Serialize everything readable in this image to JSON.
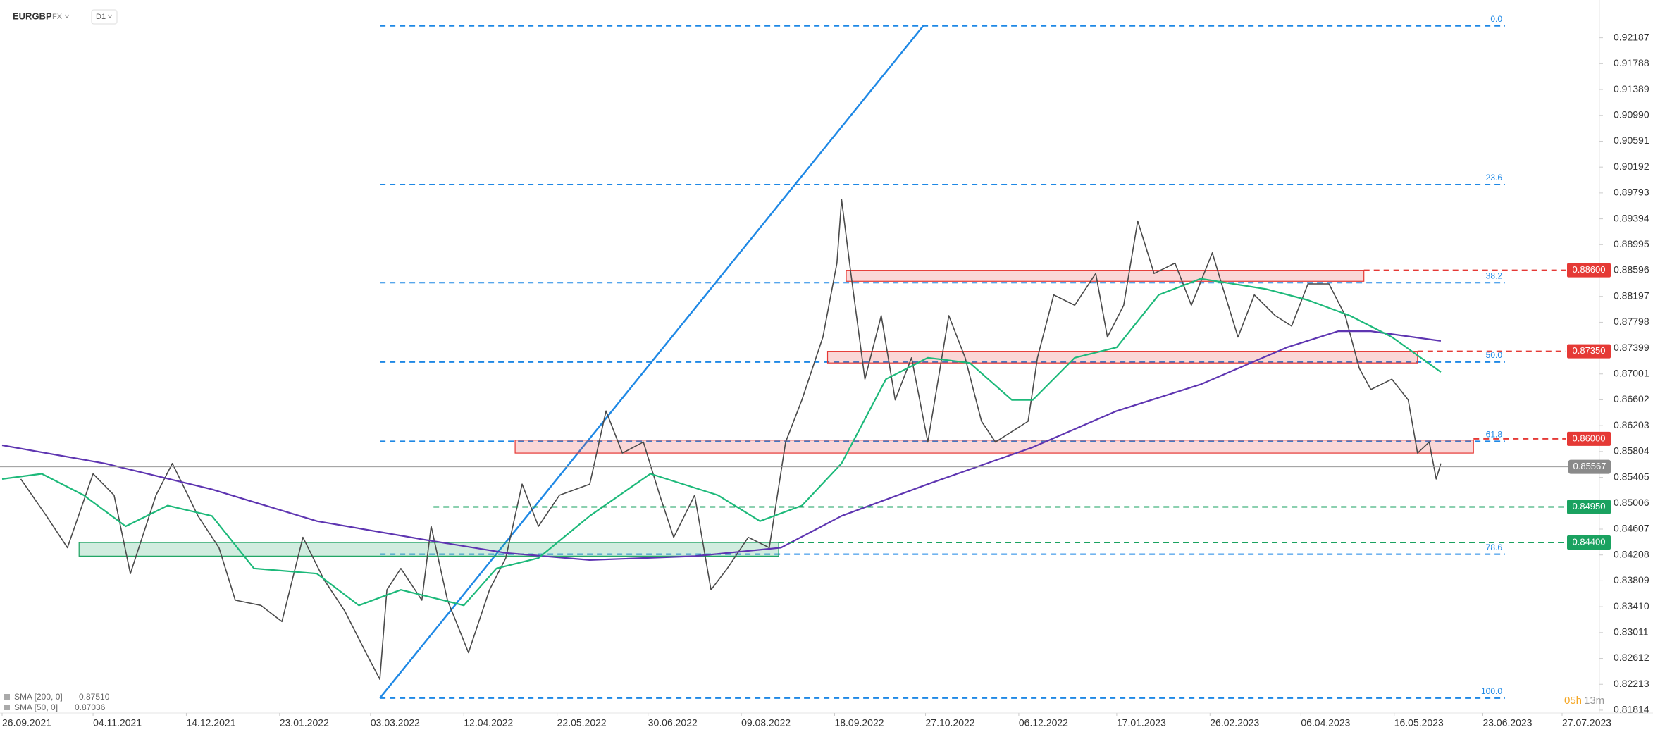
{
  "chart_data": {
    "type": "line",
    "symbol": "EURGBP",
    "market": "FX",
    "interval": "D1",
    "ylim": [
      0.8177,
      0.9277
    ],
    "yticks": [
      0.92187,
      0.91788,
      0.91389,
      {
        "value": 0.9099,
        "label": "0.90990"
      },
      0.90591,
      0.90192,
      0.89793,
      0.89394,
      0.88995,
      0.88596,
      0.88197,
      0.87798,
      0.87399,
      0.87001,
      0.86602,
      0.86203,
      0.85804,
      0.85405,
      0.85006,
      0.84607,
      0.84208,
      0.83809,
      {
        "value": 0.8341,
        "label": "0.83410"
      },
      0.83011,
      0.82612,
      0.82213,
      0.81814
    ],
    "xticks": [
      "26.09.2021",
      "04.11.2021",
      "14.12.2021",
      "23.01.2022",
      "03.03.2022",
      "12.04.2022",
      "22.05.2022",
      "30.06.2022",
      "09.08.2022",
      "18.09.2022",
      "27.10.2022",
      "06.12.2022",
      "17.01.2023",
      "26.02.2023",
      "06.04.2023",
      "16.05.2023",
      "23.06.2023",
      "27.07.2023"
    ],
    "series": [
      {
        "name": "EURGBP",
        "color": "#4a4a4a",
        "x": [
          "04.10.2021",
          "15.10.2021",
          "24.10.2021",
          "04.11.2021",
          "13.11.2021",
          "20.11.2021",
          "01.12.2021",
          "08.12.2021",
          "19.12.2021",
          "28.12.2021",
          "04.01.2022",
          "15.01.2022",
          "24.01.2022",
          "02.02.2022",
          "11.02.2022",
          "20.02.2022",
          "01.03.2022",
          "07.03.2022",
          "10.03.2022",
          "16.03.2022",
          "25.03.2022",
          "29.03.2022",
          "05.04.2022",
          "14.04.2022",
          "23.04.2022",
          "30.04.2022",
          "07.05.2022",
          "14.05.2022",
          "23.05.2022",
          "05.06.2022",
          "12.06.2022",
          "19.06.2022",
          "28.06.2022",
          "05.07.2022",
          "11.07.2022",
          "20.07.2022",
          "27.07.2022",
          "03.08.2022",
          "12.08.2022",
          "21.08.2022",
          "28.08.2022",
          "04.09.2022",
          "13.09.2022",
          "19.09.2022",
          "21.09.2022",
          "25.09.2022",
          "01.10.2022",
          "08.10.2022",
          "14.10.2022",
          "21.10.2022",
          "28.10.2022",
          "06.11.2022",
          "13.11.2022",
          "20.11.2022",
          "26.11.2022",
          "03.12.2022",
          "10.12.2022",
          "14.12.2022",
          "21.12.2022",
          "30.12.2022",
          "08.01.2023",
          "13.01.2023",
          "20.01.2023",
          "26.01.2023",
          "02.02.2023",
          "11.02.2023",
          "18.02.2023",
          "27.02.2023",
          "03.03.2023",
          "10.03.2023",
          "17.03.2023",
          "26.03.2023",
          "02.04.2023",
          "09.04.2023",
          "18.04.2023",
          "25.04.2023",
          "01.05.2023",
          "06.05.2023",
          "15.05.2023",
          "22.05.2023",
          "26.05.2023",
          "31.05.2023",
          "03.06.2023",
          "05.06.2023"
        ],
        "values": [
          0.8538,
          0.8481,
          0.8432,
          0.8546,
          0.8513,
          0.8392,
          0.8513,
          0.8562,
          0.8481,
          0.8432,
          0.8351,
          0.8343,
          0.8318,
          0.8448,
          0.8383,
          0.8334,
          0.827,
          0.8229,
          0.8367,
          0.84,
          0.8351,
          0.8465,
          0.8351,
          0.827,
          0.8367,
          0.8416,
          0.853,
          0.8465,
          0.8513,
          0.853,
          0.8643,
          0.8578,
          0.8595,
          0.8513,
          0.8448,
          0.8513,
          0.8367,
          0.84,
          0.8448,
          0.8432,
          0.8595,
          0.866,
          0.8757,
          0.8871,
          0.8969,
          0.8855,
          0.8692,
          0.879,
          0.866,
          0.8725,
          0.8595,
          0.879,
          0.8725,
          0.8627,
          0.8595,
          0.8611,
          0.8627,
          0.8725,
          0.8822,
          0.8806,
          0.8855,
          0.8757,
          0.8806,
          0.8936,
          0.8855,
          0.8871,
          0.8806,
          0.8887,
          0.8839,
          0.8757,
          0.8822,
          0.879,
          0.8774,
          0.8839,
          0.8839,
          0.879,
          0.8709,
          0.8676,
          0.8692,
          0.866,
          0.8578,
          0.8595,
          0.8538,
          0.8562
        ]
      },
      {
        "name": "SMA [200, 0]",
        "last_label": {
          "value": 0.8751,
          "label": "0.87510"
        },
        "color": "#5e35b1",
        "x": [
          "26.09.2021",
          "09.11.2021",
          "25.12.2021",
          "08.02.2022",
          "25.03.2022",
          "30.04.2022",
          "05.06.2022",
          "20.07.2022",
          "26.08.2022",
          "21.09.2022",
          "28.10.2022",
          "12.12.2022",
          "17.01.2023",
          "22.02.2023",
          "31.03.2023",
          "22.04.2023",
          "06.05.2023",
          "05.06.2023"
        ],
        "values": [
          0.859,
          0.8562,
          0.8522,
          0.8473,
          0.8445,
          0.8424,
          0.8413,
          0.8419,
          0.8432,
          0.8481,
          0.853,
          0.8587,
          0.8643,
          0.8684,
          0.8741,
          0.8766,
          0.8766,
          0.8751
        ]
      },
      {
        "name": "SMA [50, 0]",
        "last_label": 0.87036,
        "color": "#1db97a",
        "x": [
          "26.09.2021",
          "13.10.2021",
          "31.10.2021",
          "18.11.2021",
          "06.12.2021",
          "25.12.2021",
          "12.01.2022",
          "08.02.2022",
          "26.02.2022",
          "16.03.2022",
          "12.04.2022",
          "26.04.2022",
          "14.05.2022",
          "05.06.2022",
          "01.07.2022",
          "30.07.2022",
          "17.08.2022",
          "04.09.2022",
          "21.09.2022",
          "10.10.2022",
          "28.10.2022",
          "15.11.2022",
          "03.12.2022",
          "12.12.2022",
          "30.12.2022",
          "17.01.2023",
          "04.02.2023",
          "22.02.2023",
          "22.03.2023",
          "09.04.2023",
          "27.04.2023",
          "15.05.2023",
          "05.06.2023"
        ],
        "values": [
          0.8538,
          0.8546,
          0.8513,
          0.8465,
          0.8497,
          0.8481,
          0.84,
          0.8392,
          0.8343,
          0.8367,
          0.8343,
          0.84,
          0.8416,
          0.8481,
          0.8546,
          0.8513,
          0.8473,
          0.8497,
          0.8562,
          0.8692,
          0.8725,
          0.8717,
          0.866,
          0.866,
          0.8725,
          0.8741,
          0.8822,
          0.8847,
          0.8831,
          0.8814,
          0.879,
          0.8757,
          0.8703
        ]
      }
    ],
    "fib": {
      "start": "07.03.2022",
      "end": "26.10.2022",
      "low": 0.82,
      "high": 0.9237,
      "color": "#1e88e5",
      "levels": [
        {
          "value": 0,
          "label": "0.0"
        },
        23.6,
        38.2,
        {
          "value": 50,
          "label": "50.0"
        },
        61.8,
        78.6,
        {
          "value": 100,
          "label": "100.0"
        }
      ]
    },
    "zones": [
      {
        "from": 0.886,
        "to": 0.8843,
        "start": "23.09.2022",
        "end": "03.05.2023",
        "color": "#e53935"
      },
      {
        "from": 0.8735,
        "to": 0.8717,
        "start": "15.09.2022",
        "end": "26.05.2023",
        "color": "#e53935"
      },
      {
        "from": 0.8598,
        "to": 0.8578,
        "start": "04.05.2022",
        "end": "19.06.2023",
        "color": "#e53935"
      },
      {
        "from": 0.844,
        "to": 0.8419,
        "start": "29.10.2021",
        "end": "25.08.2022",
        "color": "#1aa260"
      }
    ],
    "levels": [
      {
        "value": 0.886,
        "label": "0.88600",
        "start": "03.05.2023",
        "color": "#e53935"
      },
      {
        "value": 0.8735,
        "label": "0.87350",
        "start": "26.05.2023",
        "color": "#e53935"
      },
      {
        "value": 0.86,
        "label": "0.86000",
        "start": "19.06.2023",
        "color": "#e53935"
      },
      {
        "value": 0.8495,
        "label": "0.84950",
        "start": "30.03.2022",
        "color": "#1aa260"
      },
      {
        "value": 0.844,
        "label": "0.84400",
        "start": "25.08.2022",
        "color": "#1aa260"
      }
    ],
    "last_price": 0.85567,
    "countdown": {
      "hours": "05h",
      "minutes": "13m"
    }
  }
}
